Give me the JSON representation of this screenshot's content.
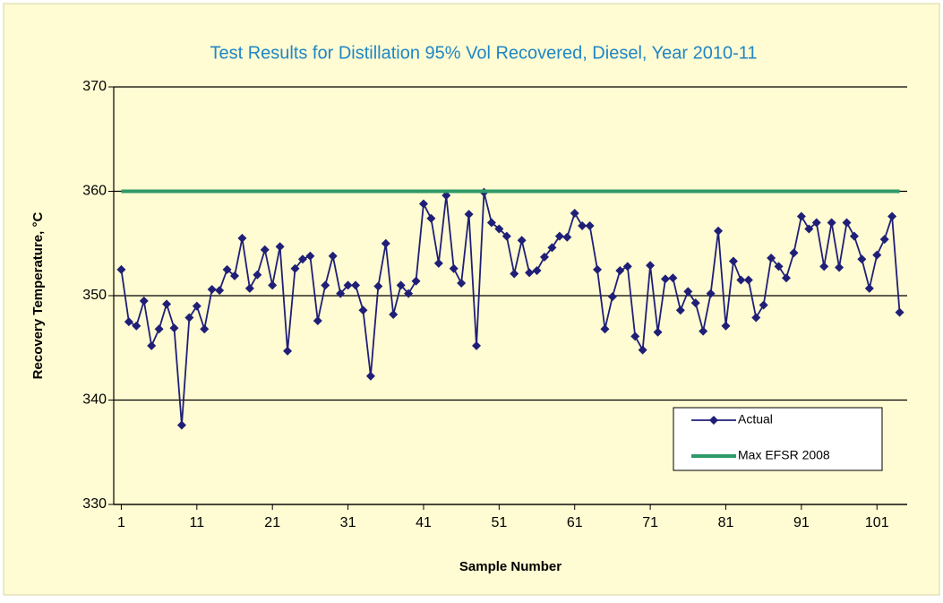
{
  "chart_data": {
    "type": "line",
    "title": "Test Results for Distillation 95% Vol Recovered, Diesel, Year 2010-11",
    "x_label": "Sample Number",
    "y_label": "Recovery Temperature, °C",
    "x": [
      1,
      2,
      3,
      4,
      5,
      6,
      7,
      8,
      9,
      10,
      11,
      12,
      13,
      14,
      15,
      16,
      17,
      18,
      19,
      20,
      21,
      22,
      23,
      24,
      25,
      26,
      27,
      28,
      29,
      30,
      31,
      32,
      33,
      34,
      35,
      36,
      37,
      38,
      39,
      40,
      41,
      42,
      43,
      44,
      45,
      46,
      47,
      48,
      49,
      50,
      51,
      52,
      53,
      54,
      55,
      56,
      57,
      58,
      59,
      60,
      61,
      62,
      63,
      64,
      65,
      66,
      67,
      68,
      69,
      70,
      71,
      72,
      73,
      74,
      75,
      76,
      77,
      78,
      79,
      80,
      81,
      82,
      83,
      84,
      85,
      86,
      87,
      88,
      89,
      90,
      91,
      92,
      93,
      94,
      95,
      96,
      97,
      98,
      99,
      100,
      101,
      102,
      103,
      104
    ],
    "xlim": [
      0,
      105
    ],
    "xticks": [
      1,
      11,
      21,
      31,
      41,
      51,
      61,
      71,
      81,
      91,
      101
    ],
    "ylim": [
      330,
      370
    ],
    "yticks": [
      330,
      340,
      350,
      360,
      370
    ],
    "grid": true,
    "legend": "lower-right",
    "series": [
      {
        "name": "Actual",
        "color": "#1f1f78",
        "marker": "diamond",
        "values": [
          352.5,
          347.5,
          347.1,
          349.5,
          345.2,
          346.8,
          349.2,
          346.9,
          337.6,
          347.9,
          349.0,
          346.8,
          350.6,
          350.5,
          352.5,
          351.9,
          355.5,
          350.7,
          352.0,
          354.4,
          351.0,
          354.7,
          344.7,
          352.6,
          353.5,
          353.8,
          347.6,
          351.0,
          353.8,
          350.2,
          351.0,
          351.0,
          348.6,
          342.3,
          350.9,
          355.0,
          348.2,
          351.0,
          350.2,
          351.4,
          358.8,
          357.4,
          353.1,
          359.6,
          352.6,
          351.2,
          357.8,
          345.2,
          359.9,
          357.0,
          356.4,
          355.7,
          352.1,
          355.3,
          352.2,
          352.4,
          353.7,
          354.6,
          355.7,
          355.6,
          357.9,
          356.7,
          356.7,
          352.5,
          346.8,
          349.9,
          352.4,
          352.8,
          346.1,
          344.8,
          352.9,
          346.5,
          351.6,
          351.7,
          348.6,
          350.4,
          349.3,
          346.6,
          350.2,
          356.2,
          347.1,
          353.3,
          351.5,
          351.5,
          347.9,
          349.1,
          353.6,
          352.8,
          351.7,
          354.1,
          357.6,
          356.4,
          357.0,
          352.8,
          357.0,
          352.7,
          357.0,
          355.7,
          353.5,
          350.7,
          353.9,
          355.4,
          357.6,
          348.4
        ]
      },
      {
        "name": "Max EFSR 2008",
        "color": "#2e9a68",
        "marker": "none",
        "values": [
          360,
          360,
          360,
          360,
          360,
          360,
          360,
          360,
          360,
          360,
          360,
          360,
          360,
          360,
          360,
          360,
          360,
          360,
          360,
          360,
          360,
          360,
          360,
          360,
          360,
          360,
          360,
          360,
          360,
          360,
          360,
          360,
          360,
          360,
          360,
          360,
          360,
          360,
          360,
          360,
          360,
          360,
          360,
          360,
          360,
          360,
          360,
          360,
          360,
          360,
          360,
          360,
          360,
          360,
          360,
          360,
          360,
          360,
          360,
          360,
          360,
          360,
          360,
          360,
          360,
          360,
          360,
          360,
          360,
          360,
          360,
          360,
          360,
          360,
          360,
          360,
          360,
          360,
          360,
          360,
          360,
          360,
          360,
          360,
          360,
          360,
          360,
          360,
          360,
          360,
          360,
          360,
          360,
          360,
          360,
          360,
          360,
          360,
          360,
          360,
          360,
          360,
          360,
          360
        ]
      }
    ]
  }
}
